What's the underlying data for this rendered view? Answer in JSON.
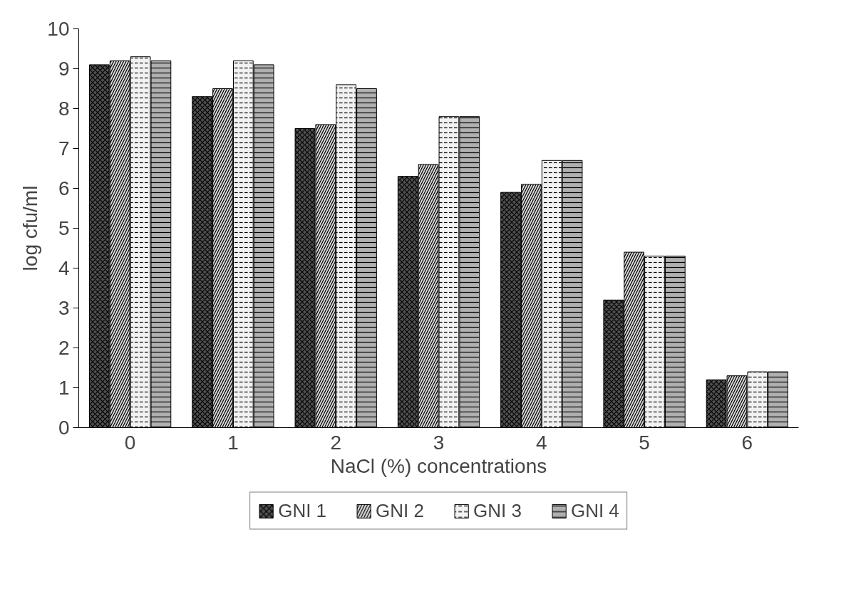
{
  "chart_data": {
    "type": "bar",
    "xlabel": "NaCl (%) concentrations",
    "ylabel": "log cfu/ml",
    "categories": [
      "0",
      "1",
      "2",
      "3",
      "4",
      "5",
      "6"
    ],
    "series": [
      {
        "name": "GNI 1",
        "color": "#505050",
        "values": [
          9.1,
          8.3,
          7.5,
          6.3,
          5.9,
          3.2,
          1.2
        ]
      },
      {
        "name": "GNI 2",
        "color": "#d8d8d8",
        "values": [
          9.2,
          8.5,
          7.6,
          6.6,
          6.1,
          4.4,
          1.3
        ]
      },
      {
        "name": "GNI 3",
        "color": "#f2f2f2",
        "values": [
          9.3,
          9.2,
          8.6,
          7.8,
          6.7,
          4.3,
          1.4
        ]
      },
      {
        "name": "GNI 4",
        "color": "#b0b0b0",
        "values": [
          9.2,
          9.1,
          8.5,
          7.8,
          6.7,
          4.3,
          1.4
        ]
      }
    ],
    "ylim": [
      0,
      10
    ],
    "yticks": [
      0,
      1,
      2,
      3,
      4,
      5,
      6,
      7,
      8,
      9,
      10
    ],
    "grid": false,
    "legend": "bottom"
  }
}
